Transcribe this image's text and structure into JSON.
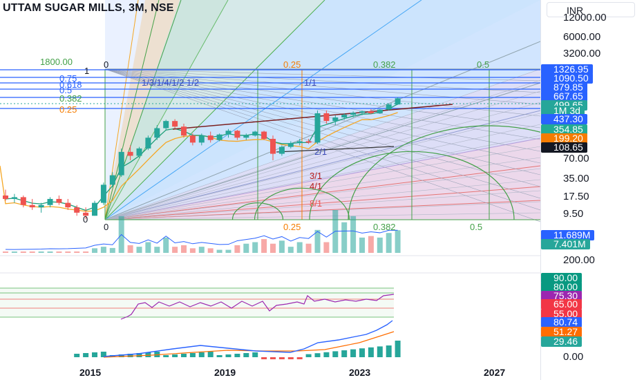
{
  "title": "UTTAM SUGAR MILLS, 3M, NSE",
  "currency": "INR",
  "price_ticks": [
    "12000.00",
    "6000.00",
    "3200.00",
    "70.00",
    "35.00",
    "17.50",
    "9.50",
    "200.00",
    "0.00"
  ],
  "badges": [
    {
      "text": "1326.95",
      "color": "#2962ff"
    },
    {
      "text": "1090.50",
      "color": "#2962ff"
    },
    {
      "text": "879.85",
      "color": "#2962ff"
    },
    {
      "text": "667.65",
      "color": "#2962ff"
    },
    {
      "text": "499.65",
      "color": "#26a69a"
    },
    {
      "text": "1M 3d",
      "color": "#26a69a"
    },
    {
      "text": "437.30",
      "color": "#2962ff"
    },
    {
      "text": "354.85",
      "color": "#22ab94"
    },
    {
      "text": "199.20",
      "color": "#f57c00"
    },
    {
      "text": "108.65",
      "color": "#131722"
    },
    {
      "text": "11.689M",
      "color": "#2962ff"
    },
    {
      "text": "7.401M",
      "color": "#26a69a"
    },
    {
      "text": "90.00",
      "color": "#089981"
    },
    {
      "text": "80.00",
      "color": "#089981"
    },
    {
      "text": "75.30",
      "color": "#9c27b0"
    },
    {
      "text": "65.00",
      "color": "#f23645"
    },
    {
      "text": "55.00",
      "color": "#f23645"
    },
    {
      "text": "80.74",
      "color": "#2962ff"
    },
    {
      "text": "51.27",
      "color": "#ff6d00"
    },
    {
      "text": "29.46",
      "color": "#26a69a"
    }
  ],
  "time_labels": [
    "2015",
    "2019",
    "2023",
    "2027"
  ],
  "fib_labels": {
    "left": [
      "1800.00",
      "1",
      "0.75",
      "0.618",
      "0.5",
      "0.382",
      "0.25",
      "0"
    ],
    "top": [
      "0",
      "0.25",
      "0.382",
      "0.5"
    ],
    "bottom": [
      "0",
      "0.25",
      "0.382",
      "0.5"
    ],
    "fan": [
      "1/3/1/4/1/2 1/2",
      "1/1",
      "2/1",
      "3/1",
      "4/1",
      "8/1"
    ]
  },
  "chart_data": {
    "type": "candlestick",
    "symbol": "UTTAM SUGAR MILLS",
    "interval": "3M",
    "exchange": "NSE",
    "last_price": 499.65,
    "candles": [
      {
        "o": 18,
        "h": 22,
        "l": 15,
        "c": 16
      },
      {
        "o": 16,
        "h": 19,
        "l": 14,
        "c": 17
      },
      {
        "o": 17,
        "h": 18,
        "l": 12,
        "c": 13
      },
      {
        "o": 13,
        "h": 16,
        "l": 11,
        "c": 12
      },
      {
        "o": 12,
        "h": 14,
        "l": 10,
        "c": 13
      },
      {
        "o": 13,
        "h": 17,
        "l": 12,
        "c": 16
      },
      {
        "o": 16,
        "h": 18,
        "l": 13,
        "c": 14
      },
      {
        "o": 14,
        "h": 16,
        "l": 11,
        "c": 12
      },
      {
        "o": 12,
        "h": 13,
        "l": 9,
        "c": 10
      },
      {
        "o": 10,
        "h": 12,
        "l": 8,
        "c": 9
      },
      {
        "o": 9,
        "h": 15,
        "l": 9,
        "c": 14
      },
      {
        "o": 14,
        "h": 28,
        "l": 13,
        "c": 26
      },
      {
        "o": 26,
        "h": 40,
        "l": 24,
        "c": 36
      },
      {
        "o": 36,
        "h": 90,
        "l": 34,
        "c": 80
      },
      {
        "o": 80,
        "h": 100,
        "l": 60,
        "c": 70
      },
      {
        "o": 70,
        "h": 95,
        "l": 65,
        "c": 90
      },
      {
        "o": 90,
        "h": 140,
        "l": 85,
        "c": 130
      },
      {
        "o": 130,
        "h": 200,
        "l": 120,
        "c": 180
      },
      {
        "o": 180,
        "h": 240,
        "l": 170,
        "c": 230
      },
      {
        "o": 230,
        "h": 245,
        "l": 180,
        "c": 190
      },
      {
        "o": 190,
        "h": 210,
        "l": 130,
        "c": 140
      },
      {
        "o": 140,
        "h": 150,
        "l": 100,
        "c": 110
      },
      {
        "o": 110,
        "h": 150,
        "l": 100,
        "c": 140
      },
      {
        "o": 140,
        "h": 160,
        "l": 110,
        "c": 120
      },
      {
        "o": 120,
        "h": 150,
        "l": 115,
        "c": 145
      },
      {
        "o": 145,
        "h": 175,
        "l": 130,
        "c": 165
      },
      {
        "o": 165,
        "h": 170,
        "l": 120,
        "c": 130
      },
      {
        "o": 130,
        "h": 150,
        "l": 120,
        "c": 140
      },
      {
        "o": 140,
        "h": 165,
        "l": 135,
        "c": 160
      },
      {
        "o": 160,
        "h": 165,
        "l": 120,
        "c": 125
      },
      {
        "o": 125,
        "h": 140,
        "l": 60,
        "c": 75
      },
      {
        "o": 75,
        "h": 100,
        "l": 70,
        "c": 95
      },
      {
        "o": 95,
        "h": 115,
        "l": 90,
        "c": 108
      },
      {
        "o": 108,
        "h": 125,
        "l": 100,
        "c": 115
      },
      {
        "o": 115,
        "h": 125,
        "l": 105,
        "c": 110
      },
      {
        "o": 110,
        "h": 330,
        "l": 105,
        "c": 300
      },
      {
        "o": 300,
        "h": 330,
        "l": 210,
        "c": 230
      },
      {
        "o": 230,
        "h": 280,
        "l": 200,
        "c": 260
      },
      {
        "o": 260,
        "h": 300,
        "l": 240,
        "c": 285
      },
      {
        "o": 285,
        "h": 320,
        "l": 260,
        "c": 305
      },
      {
        "o": 305,
        "h": 330,
        "l": 280,
        "c": 320
      },
      {
        "o": 320,
        "h": 345,
        "l": 290,
        "c": 300
      },
      {
        "o": 300,
        "h": 345,
        "l": 295,
        "c": 340
      },
      {
        "o": 340,
        "h": 420,
        "l": 330,
        "c": 405
      },
      {
        "o": 405,
        "h": 520,
        "l": 400,
        "c": 499.65
      }
    ],
    "volume": [
      0.3,
      0.2,
      0.2,
      0.2,
      0.2,
      0.3,
      0.2,
      0.2,
      0.3,
      0.4,
      1.5,
      2.0,
      1.6,
      12.0,
      2.5,
      2.0,
      3.5,
      2.0,
      5.0,
      2.0,
      2.5,
      1.5,
      2.0,
      1.5,
      1.0,
      1.0,
      2.5,
      3.0,
      3.5,
      4.5,
      3.0,
      4.0,
      2.0,
      3.5,
      3.0,
      7.5,
      3.5,
      14.0,
      10.0,
      12.0,
      5.0,
      5.5,
      5.0,
      6.5,
      7.4
    ],
    "rsi_levels": [
      90,
      80,
      75.3,
      65,
      55
    ],
    "indicator_values": {
      "rsi": 75.3,
      "line1": 80.74,
      "line2": 51.27,
      "hist": 29.46
    },
    "x_axis": [
      "2015",
      "2019",
      "2023",
      "2027"
    ],
    "scale": "log"
  }
}
